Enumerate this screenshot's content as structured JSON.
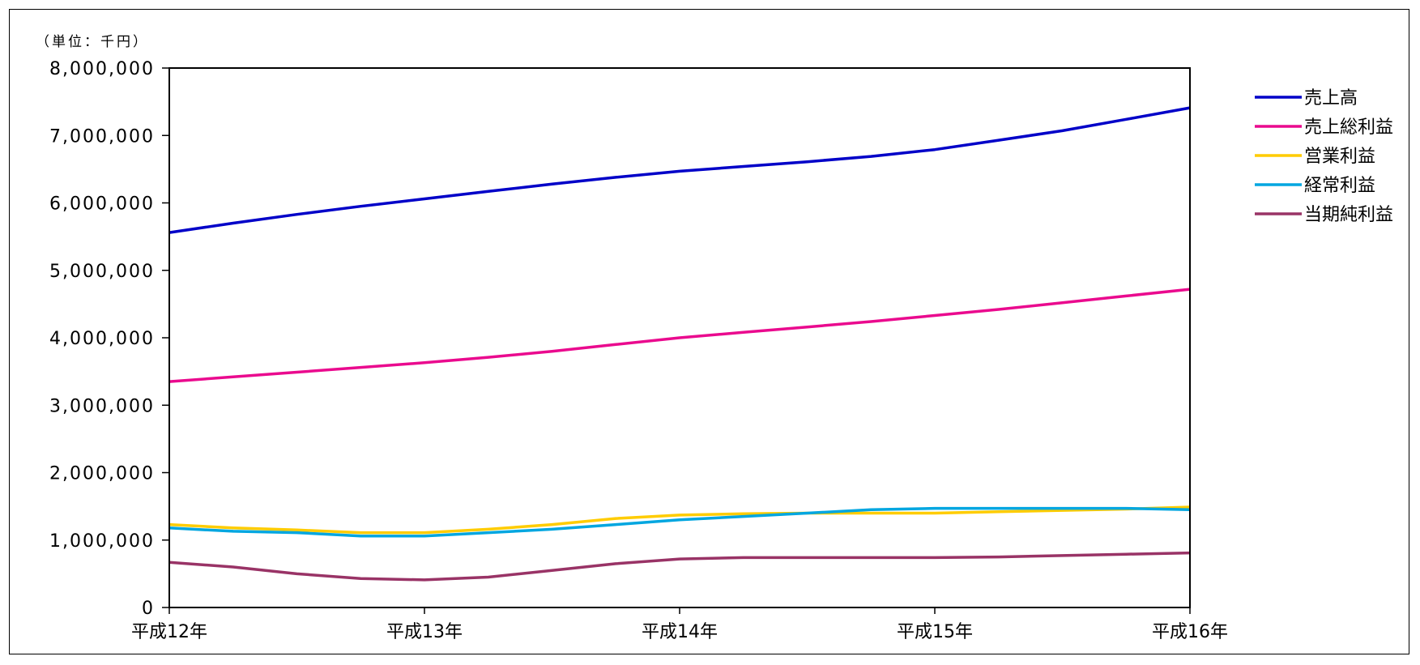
{
  "chart_data": {
    "type": "line",
    "unit_label": "（単位：千円）",
    "categories": [
      "平成12年",
      "平成13年",
      "平成14年",
      "平成15年",
      "平成16年"
    ],
    "x": [
      0,
      0.25,
      0.5,
      0.75,
      1,
      1.25,
      1.5,
      1.75,
      2,
      2.25,
      2.5,
      2.75,
      3,
      3.25,
      3.5,
      3.75,
      4
    ],
    "ylim": [
      0,
      8000000
    ],
    "yticks": [
      0,
      1000000,
      2000000,
      3000000,
      4000000,
      5000000,
      6000000,
      7000000,
      8000000
    ],
    "ytick_labels": [
      "0",
      "1,000,000",
      "2,000,000",
      "3,000,000",
      "4,000,000",
      "5,000,000",
      "6,000,000",
      "7,000,000",
      "8,000,000"
    ],
    "legend_position": "right",
    "series": [
      {
        "name": "売上高",
        "color": "#0000c8",
        "values": [
          5560000,
          5700000,
          5830000,
          5950000,
          6060000,
          6170000,
          6280000,
          6380000,
          6470000,
          6540000,
          6610000,
          6690000,
          6790000,
          6930000,
          7070000,
          7240000,
          7410000
        ]
      },
      {
        "name": "売上総利益",
        "color": "#ea0a8e",
        "values": [
          3350000,
          3420000,
          3490000,
          3560000,
          3630000,
          3710000,
          3800000,
          3900000,
          4000000,
          4080000,
          4160000,
          4240000,
          4330000,
          4420000,
          4520000,
          4620000,
          4720000
        ]
      },
      {
        "name": "営業利益",
        "color": "#ffcc00",
        "values": [
          1230000,
          1180000,
          1150000,
          1110000,
          1110000,
          1160000,
          1230000,
          1320000,
          1370000,
          1390000,
          1400000,
          1400000,
          1400000,
          1420000,
          1440000,
          1460000,
          1490000
        ]
      },
      {
        "name": "経常利益",
        "color": "#00a6e0",
        "values": [
          1180000,
          1130000,
          1110000,
          1060000,
          1060000,
          1110000,
          1160000,
          1230000,
          1300000,
          1350000,
          1400000,
          1450000,
          1470000,
          1470000,
          1470000,
          1470000,
          1450000
        ]
      },
      {
        "name": "当期純利益",
        "color": "#993366",
        "values": [
          670000,
          600000,
          500000,
          430000,
          410000,
          450000,
          550000,
          650000,
          720000,
          740000,
          740000,
          740000,
          740000,
          750000,
          770000,
          790000,
          810000
        ]
      }
    ]
  }
}
